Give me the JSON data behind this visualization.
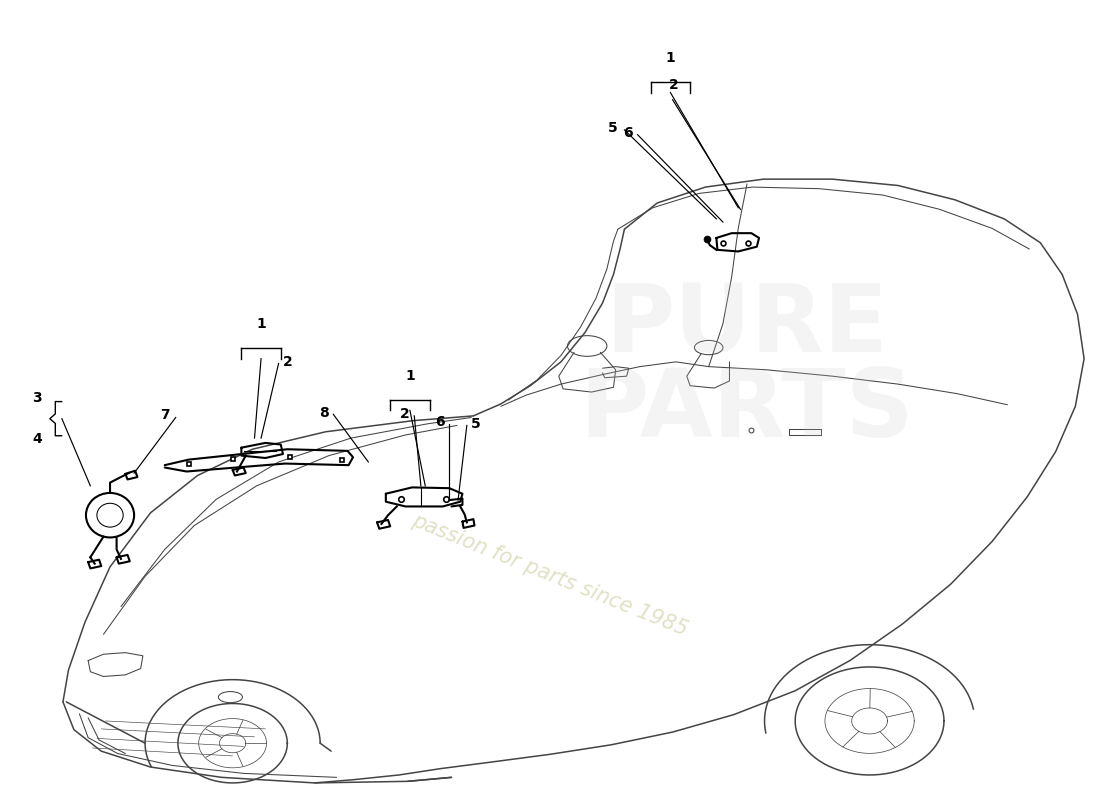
{
  "bg_color": "#ffffff",
  "car_color": "#444444",
  "part_color": "#000000",
  "label_color": "#000000",
  "wm_text1": "passion for parts since 1985",
  "wm_color1": "#c8c896",
  "wm_alpha1": 0.55,
  "wm_text2": "PURE\nPARTS",
  "wm_color2": "#cccccc",
  "wm_alpha2": 0.2
}
